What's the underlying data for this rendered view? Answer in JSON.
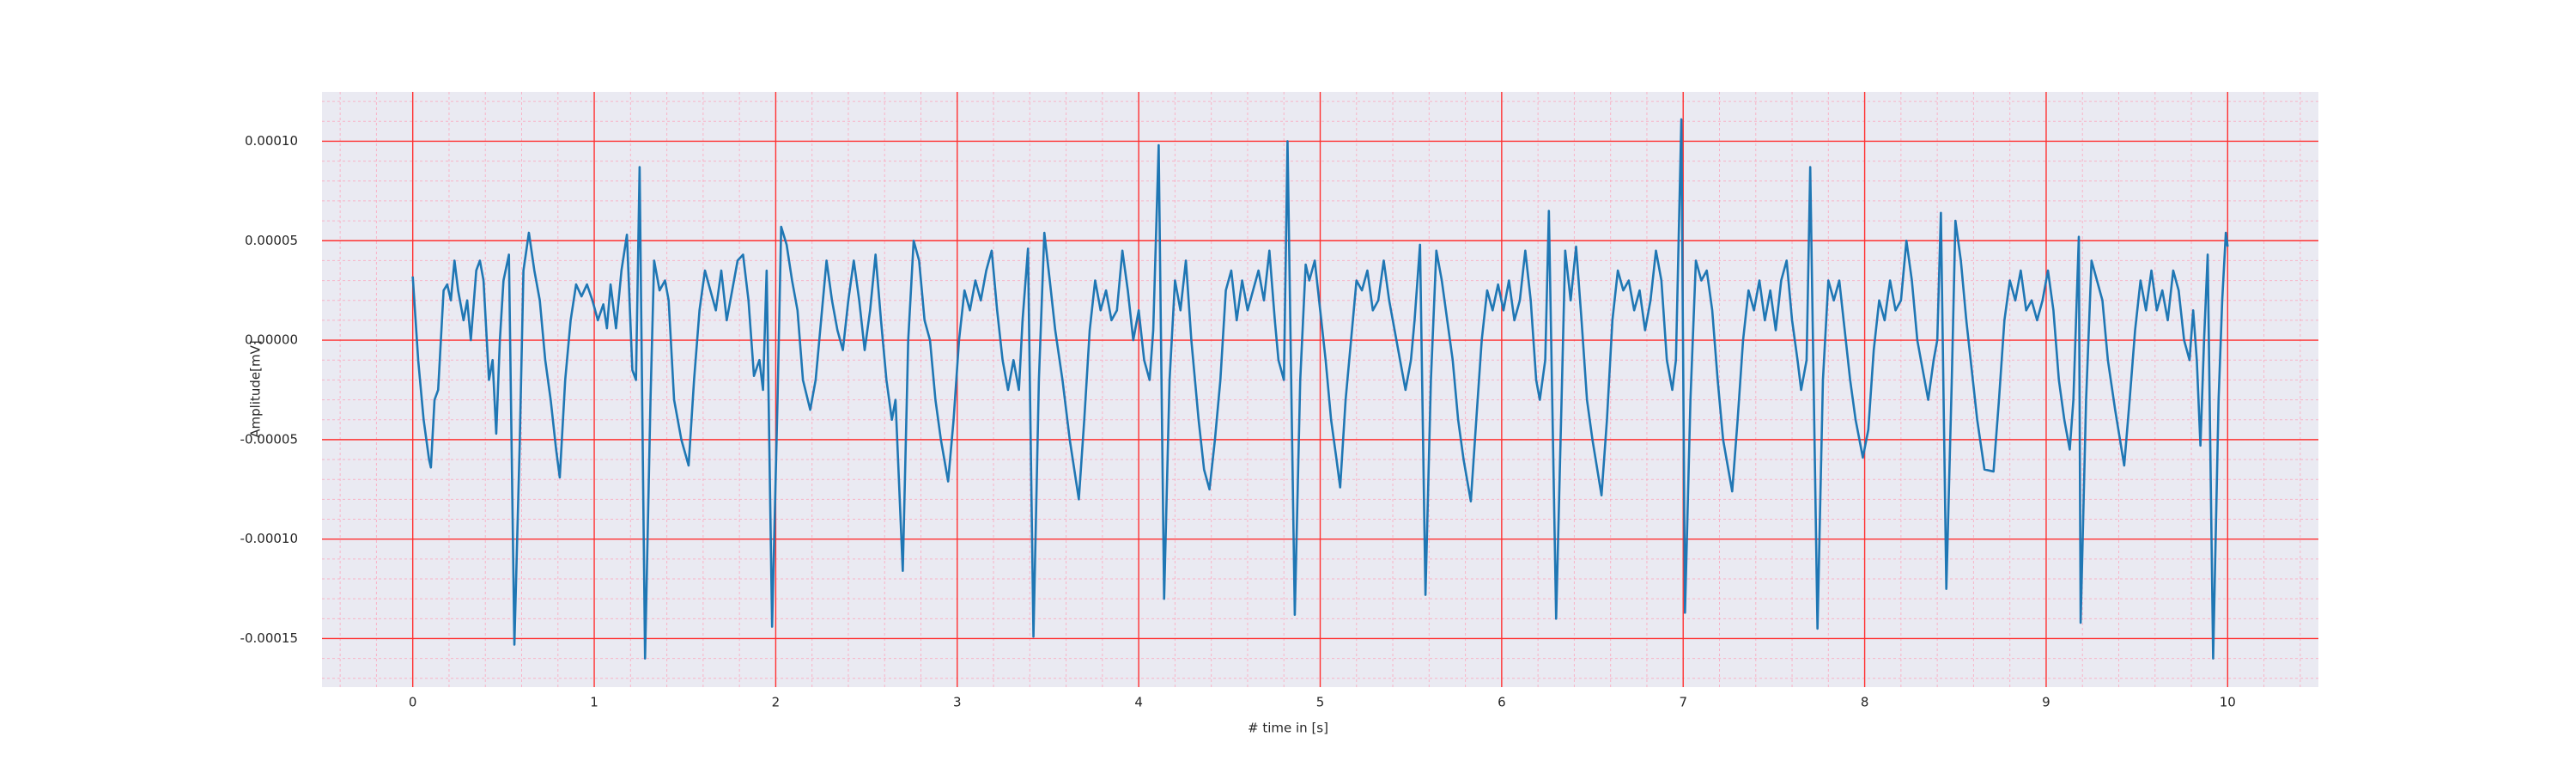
{
  "chart_data": {
    "type": "line",
    "xlabel": "# time in [s]",
    "ylabel": "Amplitude[mV]",
    "color": "#1f77b4",
    "grid": true,
    "minor_grid": true,
    "xlim": [
      -0.5,
      10.5
    ],
    "ylim": [
      -0.0001744,
      0.0001248
    ],
    "xticks": [
      0,
      1,
      2,
      3,
      4,
      5,
      6,
      7,
      8,
      9,
      10
    ],
    "yticks": [
      {
        "value": -0.00015,
        "label": "-0.00015"
      },
      {
        "value": -0.0001,
        "label": "-0.00010"
      },
      {
        "value": -5e-05,
        "label": "-0.00005"
      },
      {
        "value": 0,
        "label": "0.00000"
      },
      {
        "value": 5e-05,
        "label": "0.00005"
      },
      {
        "value": 0.0001,
        "label": "0.00010"
      }
    ],
    "x": [
      0.0,
      0.03,
      0.06,
      0.09,
      0.1,
      0.12,
      0.14,
      0.17,
      0.19,
      0.21,
      0.23,
      0.25,
      0.28,
      0.3,
      0.32,
      0.35,
      0.37,
      0.39,
      0.42,
      0.44,
      0.46,
      0.48,
      0.5,
      0.53,
      0.56,
      0.59,
      0.61,
      0.64,
      0.67,
      0.7,
      0.73,
      0.76,
      0.79,
      0.81,
      0.84,
      0.87,
      0.9,
      0.93,
      0.96,
      0.99,
      1.02,
      1.05,
      1.07,
      1.09,
      1.12,
      1.15,
      1.18,
      1.21,
      1.23,
      1.25,
      1.28,
      1.31,
      1.33,
      1.36,
      1.39,
      1.41,
      1.44,
      1.48,
      1.52,
      1.55,
      1.58,
      1.61,
      1.64,
      1.67,
      1.7,
      1.73,
      1.76,
      1.79,
      1.82,
      1.85,
      1.88,
      1.91,
      1.93,
      1.95,
      1.98,
      2.01,
      2.03,
      2.06,
      2.09,
      2.12,
      2.15,
      2.19,
      2.22,
      2.25,
      2.28,
      2.31,
      2.34,
      2.37,
      2.4,
      2.43,
      2.46,
      2.49,
      2.52,
      2.55,
      2.58,
      2.61,
      2.64,
      2.66,
      2.7,
      2.73,
      2.76,
      2.79,
      2.82,
      2.85,
      2.88,
      2.91,
      2.95,
      2.98,
      3.01,
      3.04,
      3.07,
      3.1,
      3.13,
      3.16,
      3.19,
      3.22,
      3.25,
      3.28,
      3.31,
      3.34,
      3.36,
      3.39,
      3.42,
      3.45,
      3.48,
      3.51,
      3.54,
      3.58,
      3.62,
      3.67,
      3.7,
      3.73,
      3.76,
      3.79,
      3.82,
      3.85,
      3.88,
      3.91,
      3.94,
      3.97,
      4.0,
      4.03,
      4.06,
      4.08,
      4.11,
      4.14,
      4.17,
      4.2,
      4.23,
      4.26,
      4.29,
      4.33,
      4.36,
      4.39,
      4.42,
      4.45,
      4.48,
      4.51,
      4.54,
      4.57,
      4.6,
      4.63,
      4.66,
      4.69,
      4.72,
      4.75,
      4.77,
      4.8,
      4.82,
      4.86,
      4.89,
      4.92,
      4.94,
      4.97,
      5.0,
      5.03,
      5.06,
      5.09,
      5.11,
      5.14,
      5.17,
      5.2,
      5.23,
      5.26,
      5.29,
      5.32,
      5.35,
      5.38,
      5.41,
      5.44,
      5.47,
      5.5,
      5.52,
      5.55,
      5.58,
      5.61,
      5.64,
      5.67,
      5.7,
      5.73,
      5.76,
      5.79,
      5.83,
      5.86,
      5.89,
      5.92,
      5.95,
      5.98,
      6.01,
      6.04,
      6.07,
      6.1,
      6.13,
      6.16,
      6.19,
      6.21,
      6.24,
      6.26,
      6.3,
      6.33,
      6.35,
      6.38,
      6.41,
      6.44,
      6.47,
      6.5,
      6.55,
      6.58,
      6.61,
      6.64,
      6.67,
      6.7,
      6.73,
      6.76,
      6.79,
      6.82,
      6.85,
      6.88,
      6.91,
      6.94,
      6.96,
      6.99,
      7.01,
      7.04,
      7.07,
      7.1,
      7.13,
      7.16,
      7.19,
      7.22,
      7.27,
      7.3,
      7.33,
      7.36,
      7.39,
      7.42,
      7.45,
      7.48,
      7.51,
      7.54,
      7.57,
      7.6,
      7.63,
      7.65,
      7.68,
      7.7,
      7.74,
      7.77,
      7.8,
      7.83,
      7.86,
      7.89,
      7.92,
      7.95,
      7.99,
      8.02,
      8.05,
      8.08,
      8.11,
      8.14,
      8.17,
      8.2,
      8.23,
      8.26,
      8.29,
      8.32,
      8.35,
      8.38,
      8.4,
      8.42,
      8.45,
      8.48,
      8.5,
      8.53,
      8.56,
      8.59,
      8.62,
      8.66,
      8.71,
      8.74,
      8.77,
      8.8,
      8.83,
      8.86,
      8.89,
      8.92,
      8.95,
      8.98,
      9.01,
      9.04,
      9.07,
      9.1,
      9.13,
      9.15,
      9.18,
      9.19,
      9.22,
      9.25,
      9.28,
      9.31,
      9.34,
      9.38,
      9.43,
      9.46,
      9.49,
      9.52,
      9.55,
      9.58,
      9.61,
      9.64,
      9.67,
      9.7,
      9.73,
      9.76,
      9.79,
      9.81,
      9.83,
      9.85,
      9.87,
      9.89,
      9.92,
      9.95,
      9.97,
      9.99,
      10.0
    ],
    "values": [
      3.2e-05,
      -1e-05,
      -4e-05,
      -6e-05,
      -6.4e-05,
      -3e-05,
      -2.5e-05,
      2.5e-05,
      2.8e-05,
      2e-05,
      4e-05,
      2.5e-05,
      1e-05,
      2e-05,
      0,
      3.5e-05,
      4e-05,
      3e-05,
      -2e-05,
      -1e-05,
      -4.7e-05,
      0,
      3e-05,
      4.3e-05,
      -0.000153,
      -5e-05,
      3.5e-05,
      5.4e-05,
      3.5e-05,
      2e-05,
      -1e-05,
      -3e-05,
      -5.5e-05,
      -6.9e-05,
      -2e-05,
      1e-05,
      2.8e-05,
      2.2e-05,
      2.8e-05,
      2e-05,
      1e-05,
      1.8e-05,
      6e-06,
      2.8e-05,
      6e-06,
      3.5e-05,
      5.3e-05,
      -1.5e-05,
      -2e-05,
      8.7e-05,
      -0.00016,
      -3e-05,
      4e-05,
      2.5e-05,
      3e-05,
      2e-05,
      -3e-05,
      -5e-05,
      -6.3e-05,
      -2e-05,
      1.5e-05,
      3.5e-05,
      2.5e-05,
      1.5e-05,
      3.5e-05,
      1e-05,
      2.5e-05,
      4e-05,
      4.3e-05,
      2e-05,
      -1.8e-05,
      -1e-05,
      -2.5e-05,
      3.5e-05,
      -0.000144,
      -3e-05,
      5.7e-05,
      4.8e-05,
      3e-05,
      1.5e-05,
      -2e-05,
      -3.5e-05,
      -2e-05,
      1e-05,
      4e-05,
      2e-05,
      5e-06,
      -5e-06,
      2e-05,
      4e-05,
      2e-05,
      -5e-06,
      1.5e-05,
      4.3e-05,
      1e-05,
      -2e-05,
      -4e-05,
      -3e-05,
      -0.000116,
      0,
      5e-05,
      4e-05,
      1e-05,
      0,
      -3e-05,
      -5e-05,
      -7.1e-05,
      -4e-05,
      0,
      2.5e-05,
      1.5e-05,
      3e-05,
      2e-05,
      3.5e-05,
      4.5e-05,
      1.5e-05,
      -1e-05,
      -2.5e-05,
      -1e-05,
      -2.5e-05,
      1e-05,
      4.6e-05,
      -0.000149,
      -2e-05,
      5.4e-05,
      3e-05,
      5e-06,
      -2e-05,
      -5e-05,
      -8e-05,
      -4e-05,
      5e-06,
      3e-05,
      1.5e-05,
      2.5e-05,
      1e-05,
      1.5e-05,
      4.5e-05,
      2.5e-05,
      0,
      1.5e-05,
      -1e-05,
      -2e-05,
      5e-06,
      9.8e-05,
      -0.00013,
      -2e-05,
      3e-05,
      1.5e-05,
      4e-05,
      0,
      -4e-05,
      -6.5e-05,
      -7.5e-05,
      -5e-05,
      -2e-05,
      2.5e-05,
      3.5e-05,
      1e-05,
      3e-05,
      1.5e-05,
      2.5e-05,
      3.5e-05,
      2e-05,
      4.5e-05,
      1e-05,
      -1e-05,
      -2e-05,
      0.0001,
      -0.000138,
      -2e-05,
      3.8e-05,
      3e-05,
      4e-05,
      1.5e-05,
      -1e-05,
      -4e-05,
      -6e-05,
      -7.4e-05,
      -3e-05,
      0,
      3e-05,
      2.5e-05,
      3.5e-05,
      1.5e-05,
      2e-05,
      4e-05,
      2e-05,
      5e-06,
      -1e-05,
      -2.5e-05,
      -1e-05,
      1e-05,
      4.8e-05,
      -0.000128,
      -2e-05,
      4.5e-05,
      3e-05,
      1e-05,
      -1e-05,
      -4e-05,
      -6e-05,
      -8.1e-05,
      -4e-05,
      0,
      2.5e-05,
      1.5e-05,
      2.8e-05,
      1.5e-05,
      3e-05,
      1e-05,
      2e-05,
      4.5e-05,
      2e-05,
      -2e-05,
      -3e-05,
      -1e-05,
      6.5e-05,
      -0.00014,
      -3e-05,
      4.5e-05,
      2e-05,
      4.7e-05,
      1e-05,
      -3e-05,
      -5e-05,
      -7.8e-05,
      -4e-05,
      1e-05,
      3.5e-05,
      2.5e-05,
      3e-05,
      1.5e-05,
      2.5e-05,
      5e-06,
      2e-05,
      4.5e-05,
      3e-05,
      -1e-05,
      -2.5e-05,
      -1e-05,
      0.000111,
      -0.000137,
      -3e-05,
      4e-05,
      3e-05,
      3.5e-05,
      1.5e-05,
      -2e-05,
      -5e-05,
      -7.6e-05,
      -4e-05,
      0,
      2.5e-05,
      1.5e-05,
      3e-05,
      1e-05,
      2.5e-05,
      5e-06,
      3e-05,
      4e-05,
      1e-05,
      -1e-05,
      -2.5e-05,
      -1e-05,
      8.7e-05,
      -0.000145,
      -2e-05,
      3e-05,
      2e-05,
      3e-05,
      5e-06,
      -2e-05,
      -4e-05,
      -5.9e-05,
      -4.5e-05,
      -5e-06,
      2e-05,
      1e-05,
      3e-05,
      1.5e-05,
      2e-05,
      5e-05,
      3e-05,
      0,
      -1.5e-05,
      -3e-05,
      -1e-05,
      0,
      6.4e-05,
      -0.000125,
      -2e-05,
      6e-05,
      4e-05,
      1e-05,
      -1.5e-05,
      -4e-05,
      -6.5e-05,
      -6.6e-05,
      -3e-05,
      1e-05,
      3e-05,
      2e-05,
      3.5e-05,
      1.5e-05,
      2e-05,
      1e-05,
      2e-05,
      3.5e-05,
      1.5e-05,
      -2e-05,
      -4e-05,
      -5.5e-05,
      -3e-05,
      5.2e-05,
      -0.000142,
      -3e-05,
      4e-05,
      3e-05,
      2e-05,
      -1e-05,
      -3.5e-05,
      -6.3e-05,
      -3e-05,
      5e-06,
      3e-05,
      1.5e-05,
      3.5e-05,
      1.5e-05,
      2.5e-05,
      1e-05,
      3.5e-05,
      2.5e-05,
      0,
      -1e-05,
      1.5e-05,
      -1e-05,
      -5.3e-05,
      0,
      4.3e-05,
      -0.00016,
      -3e-05,
      2e-05,
      5.4e-05,
      4.7e-05
    ]
  }
}
